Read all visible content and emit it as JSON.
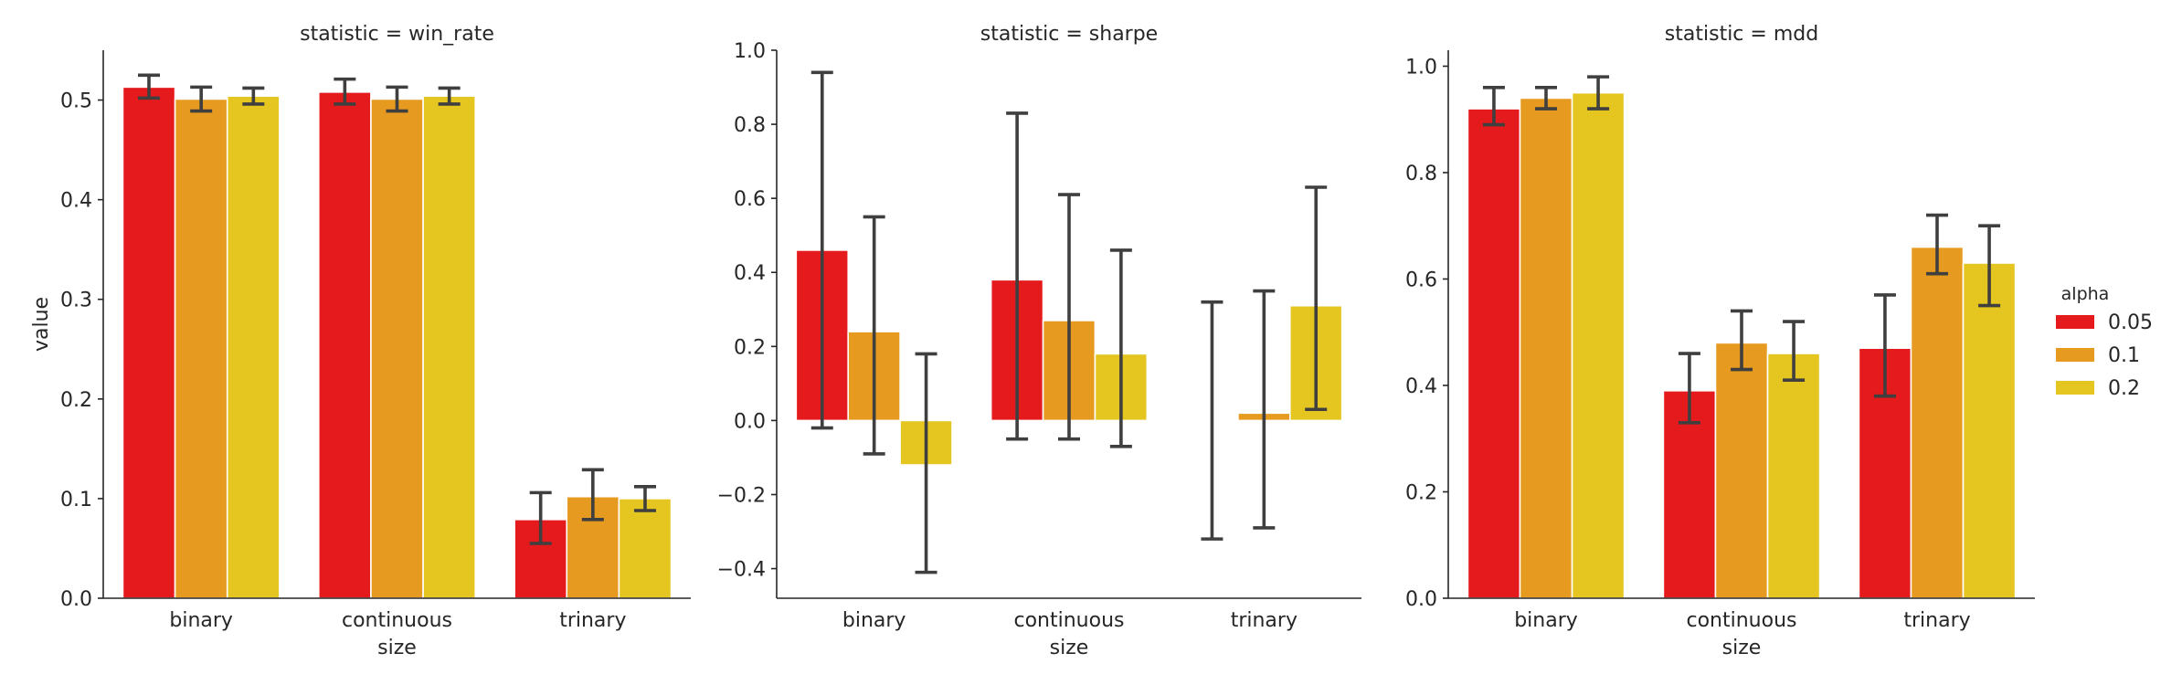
{
  "chart_data": {
    "type": "bar",
    "legend": {
      "title": "alpha",
      "placement": "right",
      "entries": [
        {
          "label": "0.05",
          "color": "#e41a1c"
        },
        {
          "label": "0.1",
          "color": "#e69a1f"
        },
        {
          "label": "0.2",
          "color": "#e5c51f"
        }
      ]
    },
    "panels": [
      {
        "title": "statistic = win_rate",
        "xlabel": "size",
        "ylabel": "value",
        "categories": [
          "binary",
          "continuous",
          "trinary"
        ],
        "ylim": [
          0,
          0.55
        ],
        "yticks": [
          0.0,
          0.1,
          0.2,
          0.3,
          0.4,
          0.5
        ],
        "ytick_labels": [
          "0.0",
          "0.1",
          "0.2",
          "0.3",
          "0.4",
          "0.5"
        ],
        "series": [
          {
            "name": "0.05",
            "values": [
              0.513,
              0.508,
              0.079
            ],
            "ci_low": [
              0.502,
              0.496,
              0.055
            ],
            "ci_high": [
              0.525,
              0.521,
              0.106
            ]
          },
          {
            "name": "0.1",
            "values": [
              0.501,
              0.501,
              0.102
            ],
            "ci_low": [
              0.489,
              0.489,
              0.079
            ],
            "ci_high": [
              0.513,
              0.513,
              0.129
            ]
          },
          {
            "name": "0.2",
            "values": [
              0.504,
              0.504,
              0.1
            ],
            "ci_low": [
              0.496,
              0.496,
              0.088
            ],
            "ci_high": [
              0.512,
              0.512,
              0.112
            ]
          }
        ]
      },
      {
        "title": "statistic = sharpe",
        "xlabel": "size",
        "ylabel": "",
        "categories": [
          "binary",
          "continuous",
          "trinary"
        ],
        "ylim": [
          -0.48,
          1.0
        ],
        "yticks": [
          -0.4,
          -0.2,
          0.0,
          0.2,
          0.4,
          0.6,
          0.8,
          1.0
        ],
        "ytick_labels": [
          "−0.4",
          "−0.2",
          "0.0",
          "0.2",
          "0.4",
          "0.6",
          "0.8",
          "1.0"
        ],
        "series": [
          {
            "name": "0.05",
            "values": [
              0.46,
              0.38,
              0.0
            ],
            "ci_low": [
              -0.02,
              -0.05,
              -0.32
            ],
            "ci_high": [
              0.94,
              0.83,
              0.32
            ]
          },
          {
            "name": "0.1",
            "values": [
              0.24,
              0.27,
              0.02
            ],
            "ci_low": [
              -0.09,
              -0.05,
              -0.29
            ],
            "ci_high": [
              0.55,
              0.61,
              0.35
            ]
          },
          {
            "name": "0.2",
            "values": [
              -0.12,
              0.18,
              0.31
            ],
            "ci_low": [
              -0.41,
              -0.07,
              0.03
            ],
            "ci_high": [
              0.18,
              0.46,
              0.63
            ]
          }
        ]
      },
      {
        "title": "statistic = mdd",
        "xlabel": "size",
        "ylabel": "",
        "categories": [
          "binary",
          "continuous",
          "trinary"
        ],
        "ylim": [
          0,
          1.03
        ],
        "yticks": [
          0.0,
          0.2,
          0.4,
          0.6,
          0.8,
          1.0
        ],
        "ytick_labels": [
          "0.0",
          "0.2",
          "0.4",
          "0.6",
          "0.8",
          "1.0"
        ],
        "series": [
          {
            "name": "0.05",
            "values": [
              0.92,
              0.39,
              0.47
            ],
            "ci_low": [
              0.89,
              0.33,
              0.38
            ],
            "ci_high": [
              0.96,
              0.46,
              0.57
            ]
          },
          {
            "name": "0.1",
            "values": [
              0.94,
              0.48,
              0.66
            ],
            "ci_low": [
              0.92,
              0.43,
              0.61
            ],
            "ci_high": [
              0.96,
              0.54,
              0.72
            ]
          },
          {
            "name": "0.2",
            "values": [
              0.95,
              0.46,
              0.63
            ],
            "ci_low": [
              0.92,
              0.41,
              0.55
            ],
            "ci_high": [
              0.98,
              0.52,
              0.7
            ]
          }
        ]
      }
    ]
  }
}
